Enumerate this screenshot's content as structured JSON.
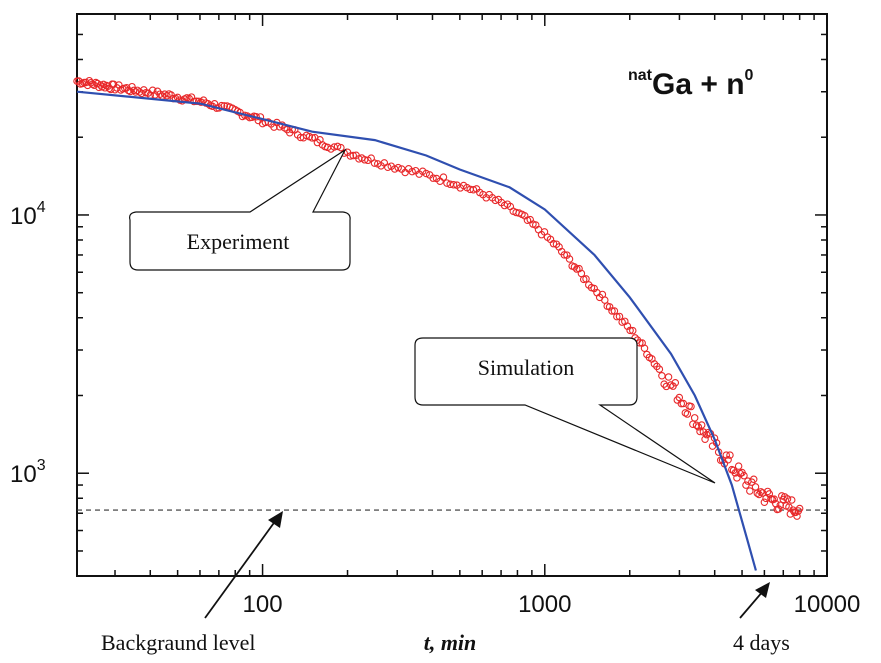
{
  "chart_data": {
    "type": "scatter",
    "x_scale": "log",
    "y_scale": "log",
    "xlim": [
      22,
      10000
    ],
    "ylim": [
      400,
      60000
    ],
    "xlabel": "t, min",
    "ylabel": "",
    "title_parts": {
      "superscript": "nat",
      "main": "Ga + n",
      "superscript2": "0"
    },
    "x_ticks": [
      {
        "value": 100,
        "label": "100"
      },
      {
        "value": 1000,
        "label": "1000"
      },
      {
        "value": 10000,
        "label": "10000"
      }
    ],
    "y_ticks": [
      {
        "value": 1000,
        "base": "10",
        "exp": "3"
      },
      {
        "value": 10000,
        "base": "10",
        "exp": "4"
      }
    ],
    "background_level": 720,
    "series": [
      {
        "kind": "markers",
        "color": "#e8282a",
        "points": [
          [
            22,
            33000
          ],
          [
            24,
            32500
          ],
          [
            26,
            32000
          ],
          [
            28,
            31600
          ],
          [
            30,
            31200
          ],
          [
            33,
            30800
          ],
          [
            36,
            30300
          ],
          [
            40,
            29800
          ],
          [
            45,
            29200
          ],
          [
            50,
            28600
          ],
          [
            56,
            27900
          ],
          [
            63,
            27200
          ],
          [
            70,
            26300
          ],
          [
            80,
            25200
          ],
          [
            90,
            24200
          ],
          [
            100,
            23200
          ],
          [
            115,
            22000
          ],
          [
            130,
            20900
          ],
          [
            150,
            19700
          ],
          [
            170,
            18700
          ],
          [
            200,
            17500
          ],
          [
            230,
            16600
          ],
          [
            270,
            15800
          ],
          [
            320,
            15000
          ],
          [
            380,
            14300
          ],
          [
            450,
            13600
          ],
          [
            530,
            12800
          ],
          [
            620,
            11900
          ],
          [
            720,
            10900
          ],
          [
            830,
            9900
          ],
          [
            950,
            8800
          ],
          [
            1100,
            7600
          ],
          [
            1250,
            6500
          ],
          [
            1400,
            5600
          ],
          [
            1600,
            4800
          ],
          [
            1800,
            4100
          ],
          [
            2050,
            3500
          ],
          [
            2300,
            2950
          ],
          [
            2600,
            2450
          ],
          [
            2900,
            2100
          ],
          [
            3200,
            1800
          ],
          [
            3500,
            1550
          ],
          [
            3800,
            1350
          ],
          [
            4200,
            1200
          ],
          [
            4600,
            1070
          ],
          [
            5000,
            960
          ],
          [
            5500,
            880
          ],
          [
            6000,
            820
          ],
          [
            6500,
            780
          ],
          [
            7000,
            760
          ],
          [
            7500,
            740
          ],
          [
            8000,
            730
          ]
        ]
      },
      {
        "kind": "line",
        "color": "#2f4fb0",
        "points": [
          [
            22,
            30000
          ],
          [
            60,
            27000
          ],
          [
            100,
            23500
          ],
          [
            150,
            21000
          ],
          [
            250,
            19500
          ],
          [
            380,
            17000
          ],
          [
            500,
            15000
          ],
          [
            750,
            12800
          ],
          [
            1000,
            10500
          ],
          [
            1500,
            7000
          ],
          [
            2000,
            4800
          ],
          [
            2800,
            2900
          ],
          [
            3400,
            2000
          ],
          [
            4000,
            1350
          ],
          [
            4600,
            900
          ],
          [
            5200,
            560
          ],
          [
            5600,
            420
          ]
        ]
      }
    ],
    "annotations": {
      "experiment": "Experiment",
      "simulation": "Simulation",
      "background": "Backgraund level",
      "days": "4 days"
    }
  }
}
